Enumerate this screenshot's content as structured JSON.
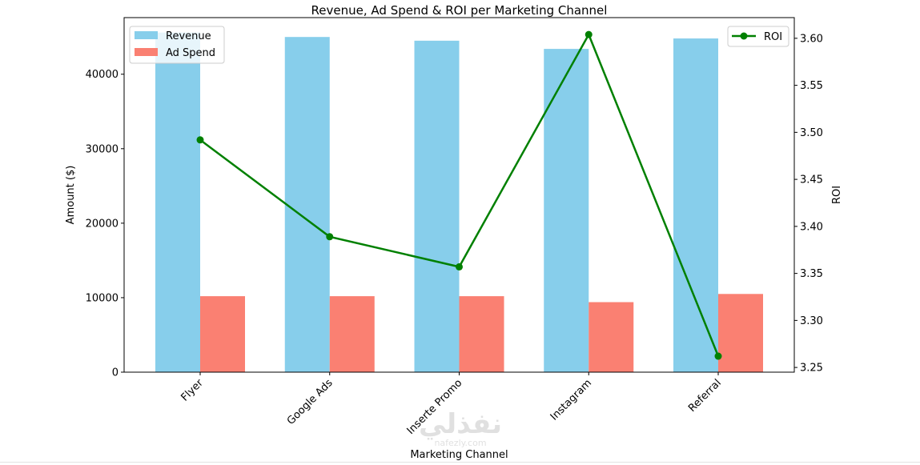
{
  "chart_data": {
    "type": "bar",
    "title": "Revenue, Ad Spend & ROI per Marketing Channel",
    "xlabel": "Marketing Channel",
    "ylabel": "Amount ($)",
    "ylabel_right": "ROI",
    "categories": [
      "Flyer",
      "Google Ads",
      "Inserte Promo",
      "Instagram",
      "Referral"
    ],
    "series": [
      {
        "name": "Revenue",
        "kind": "bar",
        "axis": "left",
        "color": "#87CEEB",
        "values": [
          45600,
          45000,
          44500,
          43400,
          44800
        ]
      },
      {
        "name": "Ad Spend",
        "kind": "bar",
        "axis": "left",
        "color": "#FA8072",
        "values": [
          10200,
          10200,
          10200,
          9400,
          10500
        ]
      },
      {
        "name": "ROI",
        "kind": "line",
        "axis": "right",
        "color": "#008000",
        "marker": "circle",
        "values": [
          3.492,
          3.389,
          3.357,
          3.604,
          3.262
        ]
      }
    ],
    "ylim": [
      0,
      47600
    ],
    "ylim_right": [
      3.245,
      3.622
    ],
    "yticks": [
      "0",
      "10000",
      "20000",
      "30000",
      "40000"
    ],
    "yticks_right": [
      "3.25",
      "3.30",
      "3.35",
      "3.40",
      "3.45",
      "3.50",
      "3.55",
      "3.60"
    ],
    "grid": false,
    "legend_left": "top-left",
    "legend_right": "top-right",
    "xtick_rotation": 45
  },
  "watermark": {
    "text_main": "نفذلي",
    "text_sub": "nafezly.com"
  }
}
